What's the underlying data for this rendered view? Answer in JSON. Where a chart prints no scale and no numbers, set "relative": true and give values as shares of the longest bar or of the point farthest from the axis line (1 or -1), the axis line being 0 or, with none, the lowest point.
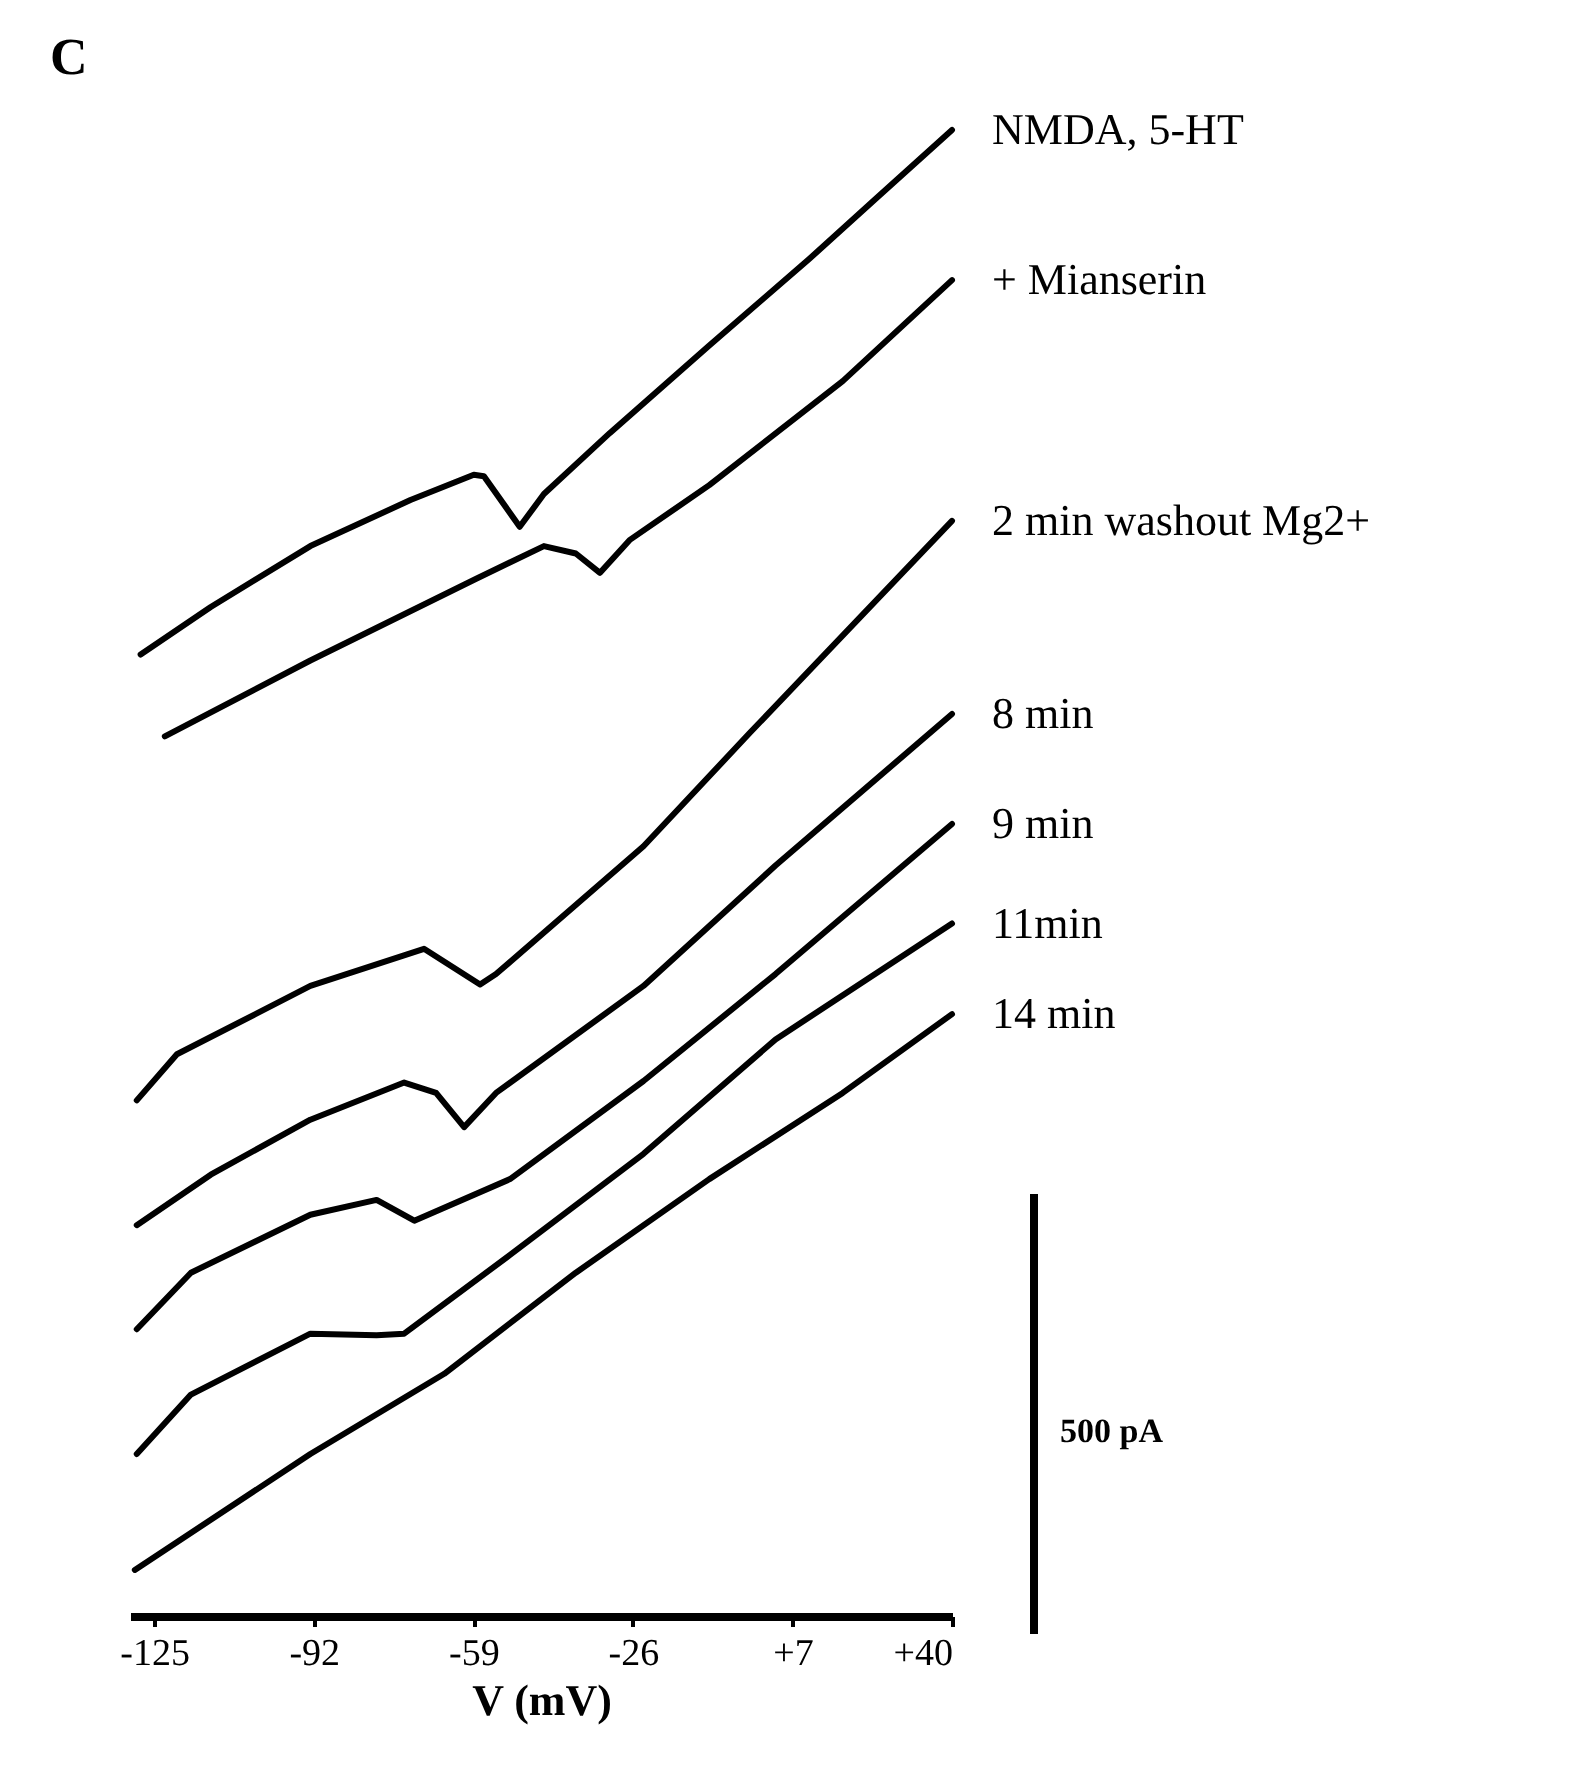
{
  "chart_data": {
    "type": "line",
    "title": "C",
    "xlabel": "V (mV)",
    "relative": true,
    "legend": false,
    "line_style": "solid",
    "xlim": [
      -130,
      40
    ],
    "xticks": [
      -125,
      -92,
      -59,
      -26,
      {
        "value": 7,
        "label": "+7"
      },
      {
        "value": 40,
        "label": "+40"
      }
    ],
    "annotations": [
      "500 pA"
    ],
    "series": [
      {
        "name": "NMDA, 5-HT",
        "color": "#000000",
        "x": [
          -127.8,
          -113.3,
          -92.7,
          -72.0,
          -58.9,
          -56.8,
          -49.4,
          -44.4,
          -30.8,
          -10.2,
          10.4,
          24.0,
          40
        ],
        "values": [
          0.647,
          0.679,
          0.72,
          0.751,
          0.768,
          0.767,
          0.733,
          0.755,
          0.796,
          0.855,
          0.913,
          0.953,
          1
        ]
      },
      {
        "name": "+ Mianserin",
        "color": "#000000",
        "x": [
          -122.8,
          -92.7,
          -58.4,
          -44.4,
          -37.8,
          -32.8,
          -26.7,
          -10.2,
          17.4,
          40
        ],
        "values": [
          0.592,
          0.643,
          0.698,
          0.72,
          0.715,
          0.702,
          0.724,
          0.761,
          0.831,
          0.899
        ]
      },
      {
        "name": "2 min washout Mg2+",
        "color": "#000000",
        "x": [
          -128.6,
          -120.3,
          -92.7,
          -69.2,
          -57.6,
          -54.3,
          -23.8,
          -1.9,
          40
        ],
        "values": [
          0.347,
          0.378,
          0.424,
          0.449,
          0.425,
          0.432,
          0.518,
          0.594,
          0.737
        ]
      },
      {
        "name": "8 min",
        "color": "#000000",
        "x": [
          -128.6,
          -113.3,
          -92.7,
          -73.3,
          -66.7,
          -60.9,
          -54.3,
          -23.8,
          3.5,
          40
        ],
        "values": [
          0.263,
          0.297,
          0.334,
          0.359,
          0.352,
          0.329,
          0.352,
          0.424,
          0.505,
          0.607
        ]
      },
      {
        "name": "9 min",
        "color": "#000000",
        "x": [
          -128.6,
          -117.4,
          -92.7,
          -79.0,
          -71.2,
          -51.4,
          -23.8,
          3.5,
          40
        ],
        "values": [
          0.193,
          0.231,
          0.27,
          0.28,
          0.266,
          0.294,
          0.36,
          0.432,
          0.533
        ]
      },
      {
        "name": "11min",
        "color": "#000000",
        "x": [
          -128.6,
          -117.4,
          -92.7,
          -79.0,
          -73.3,
          -51.4,
          -23.8,
          3.5,
          40
        ],
        "values": [
          0.109,
          0.149,
          0.19,
          0.189,
          0.19,
          0.243,
          0.311,
          0.388,
          0.466
        ]
      },
      {
        "name": "14 min",
        "color": "#000000",
        "x": [
          -129.0,
          -92.7,
          -65.0,
          -37.8,
          -10.2,
          17.4,
          40
        ],
        "values": [
          0.031,
          0.109,
          0.163,
          0.231,
          0.294,
          0.352,
          0.405
        ]
      }
    ]
  }
}
